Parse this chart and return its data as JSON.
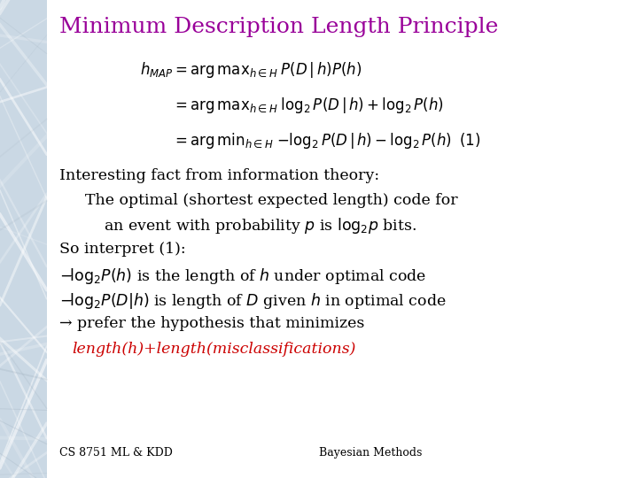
{
  "title": "Minimum Description Length Principle",
  "title_color": "#990099",
  "title_fontsize": 18,
  "bg_color": "#ffffff",
  "text_color": "#000000",
  "red_color": "#cc0000",
  "footer_left": "CS 8751 ML & KDD",
  "footer_right": "Bayesian Methods",
  "footer_fontsize": 9,
  "body_fontsize": 12.5,
  "eq_fontsize": 12,
  "left_bar_width": 0.073
}
